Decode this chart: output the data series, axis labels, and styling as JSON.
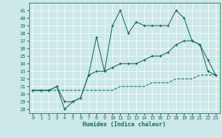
{
  "xlabel": "Humidex (Indice chaleur)",
  "background_color": "#cce8e8",
  "line_color": "#1a6b5a",
  "xlim": [
    -0.5,
    23.5
  ],
  "ylim": [
    27.5,
    42
  ],
  "xticks": [
    0,
    1,
    2,
    3,
    4,
    5,
    6,
    7,
    8,
    9,
    10,
    11,
    12,
    13,
    14,
    15,
    16,
    17,
    18,
    19,
    20,
    21,
    22,
    23
  ],
  "yticks": [
    28,
    29,
    30,
    31,
    32,
    33,
    34,
    35,
    36,
    37,
    38,
    39,
    40,
    41
  ],
  "line_dashed": {
    "x": [
      0,
      1,
      2,
      3,
      4,
      5,
      6,
      7,
      8,
      9,
      10,
      11,
      12,
      13,
      14,
      15,
      16,
      17,
      18,
      19,
      20,
      21,
      22,
      23
    ],
    "y": [
      30.5,
      30.5,
      30.5,
      30.5,
      30.5,
      30.5,
      30.5,
      30.5,
      30.5,
      30.5,
      30.5,
      31.0,
      31.0,
      31.0,
      31.0,
      31.5,
      31.5,
      31.5,
      32.0,
      32.0,
      32.0,
      32.5,
      32.5,
      32.5
    ]
  },
  "line_upper": {
    "x": [
      0,
      1,
      2,
      3,
      4,
      5,
      6,
      7,
      8,
      9,
      10,
      11,
      12,
      13,
      14,
      15,
      16,
      17,
      18,
      19,
      20,
      21,
      22,
      23
    ],
    "y": [
      30.5,
      30.5,
      30.5,
      31.0,
      29.0,
      29.0,
      29.5,
      32.5,
      37.5,
      33.0,
      39.0,
      41.0,
      38.0,
      39.5,
      39.0,
      39.0,
      39.0,
      39.0,
      41.0,
      40.0,
      37.0,
      36.5,
      34.5,
      32.5
    ]
  },
  "line_middle": {
    "x": [
      0,
      1,
      2,
      3,
      4,
      5,
      6,
      7,
      8,
      9,
      10,
      11,
      12,
      13,
      14,
      15,
      16,
      17,
      18,
      19,
      20,
      21,
      22,
      23
    ],
    "y": [
      30.5,
      30.5,
      30.5,
      31.0,
      28.0,
      29.0,
      29.5,
      32.5,
      33.0,
      33.0,
      33.5,
      34.0,
      34.0,
      34.0,
      34.5,
      35.0,
      35.0,
      35.5,
      36.5,
      37.0,
      37.0,
      36.5,
      33.0,
      32.5
    ]
  }
}
